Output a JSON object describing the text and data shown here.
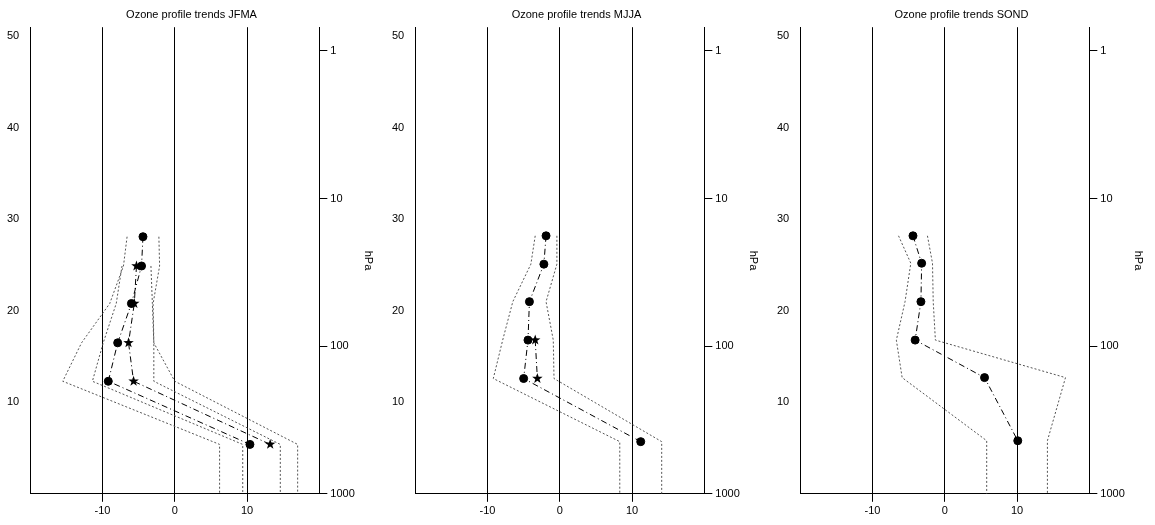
{
  "chart_data": [
    {
      "type": "line",
      "title": "Ozone profile trends JFMA",
      "xlim": [
        -20,
        20
      ],
      "xticks": [
        -10,
        0,
        10
      ],
      "ylim": [
        0,
        51
      ],
      "yticks": [
        10,
        20,
        30,
        40,
        50
      ],
      "y2lim": [
        1000,
        0.69
      ],
      "y2ticks": [
        1,
        10,
        100,
        1000
      ],
      "y2label": "hPa",
      "log": "y2",
      "grid": "x",
      "series": [
        {
          "color": "#000000",
          "marker": "circle",
          "line_style": "dashed",
          "x": [
            -4.4,
            -4.6,
            -6.0,
            -7.9,
            -9.2,
            10.4
          ],
          "values": [
            28.1,
            24.9,
            20.8,
            16.5,
            12.3,
            5.4
          ]
        },
        {
          "color": "#000000",
          "marker": "star",
          "line_style": "dashed",
          "x": [
            -5.3,
            -5.6,
            -6.4,
            -5.7,
            13.2
          ],
          "values": [
            24.9,
            20.8,
            16.5,
            12.3,
            5.4
          ]
        },
        {
          "color": "#555555",
          "marker": "none",
          "line_style": "dotted",
          "x": [
            -6.6,
            -7.1,
            -9.0,
            -12.9,
            -15.5,
            6.2,
            6.2
          ],
          "values": [
            28.1,
            24.9,
            20.8,
            16.5,
            12.3,
            5.4,
            0
          ]
        },
        {
          "color": "#555555",
          "marker": "none",
          "line_style": "dotted",
          "x": [
            -2.2,
            -2.1,
            -3.0,
            -2.9,
            -2.9,
            14.6,
            14.6
          ],
          "values": [
            28.1,
            24.9,
            20.8,
            16.5,
            12.3,
            5.4,
            0
          ]
        },
        {
          "color": "#555555",
          "marker": "none",
          "line_style": "dotted",
          "x": [
            -7.3,
            -8.1,
            -9.9,
            -11.4,
            9.4,
            9.4
          ],
          "values": [
            24.9,
            20.8,
            16.5,
            12.3,
            5.4,
            0
          ]
        },
        {
          "color": "#555555",
          "marker": "none",
          "line_style": "dotted",
          "x": [
            -3.3,
            -3.1,
            -2.9,
            0.0,
            17.0,
            17.0
          ],
          "values": [
            24.9,
            20.8,
            16.5,
            12.3,
            5.4,
            0
          ]
        }
      ]
    },
    {
      "type": "line",
      "title": "Ozone profile trends MJJA",
      "xlim": [
        -20,
        20
      ],
      "xticks": [
        -10,
        0,
        10
      ],
      "ylim": [
        0,
        51
      ],
      "yticks": [
        10,
        20,
        30,
        40,
        50
      ],
      "y2lim": [
        1000,
        0.69
      ],
      "y2ticks": [
        1,
        10,
        100,
        1000
      ],
      "y2label": "hPa",
      "log": "y2",
      "grid": "x",
      "series": [
        {
          "color": "#000000",
          "marker": "circle",
          "line_style": "dashed",
          "x": [
            -1.9,
            -2.2,
            -4.2,
            -4.4,
            -5.0,
            11.2
          ],
          "values": [
            28.2,
            25.1,
            21.0,
            16.8,
            12.6,
            5.7
          ]
        },
        {
          "color": "#000000",
          "marker": "star",
          "line_style": "dashed",
          "x": [
            -3.4,
            -3.1
          ],
          "values": [
            16.8,
            12.6
          ]
        },
        {
          "color": "#555555",
          "marker": "none",
          "line_style": "dotted",
          "x": [
            -3.4,
            -4.0,
            -6.5,
            -7.9,
            -9.2,
            8.3,
            8.3
          ],
          "values": [
            28.2,
            25.1,
            21.0,
            16.8,
            12.6,
            5.7,
            0
          ]
        },
        {
          "color": "#555555",
          "marker": "none",
          "line_style": "dotted",
          "x": [
            -0.4,
            -0.4,
            -1.9,
            -0.9,
            -0.8,
            14.1,
            14.1
          ],
          "values": [
            28.2,
            25.1,
            21.0,
            16.8,
            12.6,
            5.7,
            0
          ]
        }
      ]
    },
    {
      "type": "line",
      "title": "Ozone profile trends SOND",
      "xlim": [
        -20,
        20
      ],
      "xticks": [
        -10,
        0,
        10
      ],
      "ylim": [
        0,
        51
      ],
      "yticks": [
        10,
        20,
        30,
        40,
        50
      ],
      "y2lim": [
        1000,
        0.69
      ],
      "y2ticks": [
        1,
        10,
        100,
        1000
      ],
      "y2label": "hPa",
      "log": "y2",
      "grid": "x",
      "series": [
        {
          "color": "#000000",
          "marker": "circle",
          "line_style": "dashed",
          "x": [
            -4.4,
            -3.2,
            -3.3,
            -4.1,
            5.5,
            10.1
          ],
          "values": [
            28.2,
            25.2,
            21.0,
            16.8,
            12.7,
            5.8
          ]
        },
        {
          "color": "#555555",
          "marker": "none",
          "line_style": "dotted",
          "x": [
            -6.4,
            -4.7,
            -5.5,
            -6.7,
            -5.9,
            5.8,
            5.8
          ],
          "values": [
            28.2,
            25.2,
            21.0,
            16.8,
            12.7,
            5.8,
            0
          ]
        },
        {
          "color": "#555555",
          "marker": "none",
          "line_style": "dotted",
          "x": [
            -2.4,
            -1.7,
            -1.6,
            -1.3,
            16.7,
            14.2,
            14.2
          ],
          "values": [
            28.2,
            25.2,
            21.0,
            16.8,
            12.7,
            5.8,
            0
          ]
        }
      ]
    }
  ]
}
